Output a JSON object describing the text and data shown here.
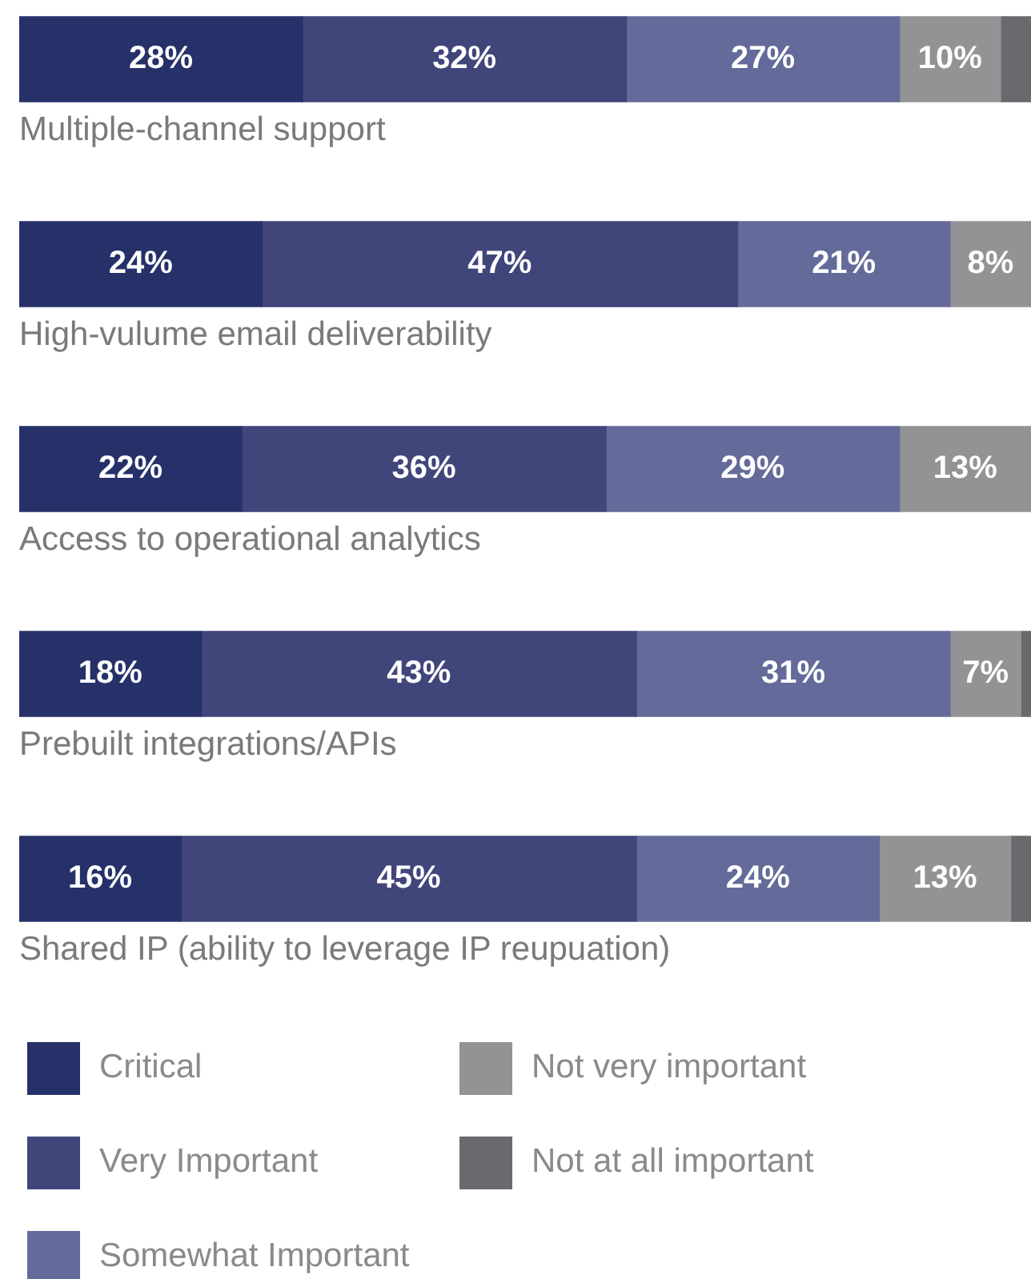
{
  "chart_data": {
    "type": "bar",
    "orientation": "horizontal",
    "stacked": true,
    "categories": [
      "Multiple-channel support",
      "High-vulume email deliverability",
      "Access to operational analytics",
      "Prebuilt integrations/APIs",
      "Shared IP (ability to leverage IP reupuation)"
    ],
    "xlim": [
      0,
      100
    ],
    "series": [
      {
        "name": "Critical",
        "color": "#263169",
        "values": [
          28,
          24,
          22,
          18,
          16
        ],
        "value_labels": [
          "28%",
          "24%",
          "22%",
          "18%",
          "16%"
        ]
      },
      {
        "name": "Very Important",
        "color": "#40457a",
        "values": [
          32,
          47,
          36,
          43,
          45
        ],
        "value_labels": [
          "32%",
          "47%",
          "36%",
          "43%",
          "45%"
        ]
      },
      {
        "name": "Somewhat Important",
        "color": "#646b9a",
        "values": [
          27,
          21,
          29,
          31,
          24
        ],
        "value_labels": [
          "27%",
          "21%",
          "29%",
          "31%",
          "24%"
        ]
      },
      {
        "name": "Not very important",
        "color": "#939395",
        "values": [
          10,
          8,
          13,
          7,
          13
        ],
        "value_labels": [
          "10%",
          "8%",
          "13%",
          "7%",
          "13%"
        ]
      },
      {
        "name": "Not at all important",
        "color": "#6a6a6e",
        "values": [
          3,
          0,
          0,
          1,
          2
        ],
        "value_labels": [
          null,
          null,
          null,
          null,
          null
        ]
      }
    ],
    "legend": "bottom",
    "tick_labels": false
  }
}
